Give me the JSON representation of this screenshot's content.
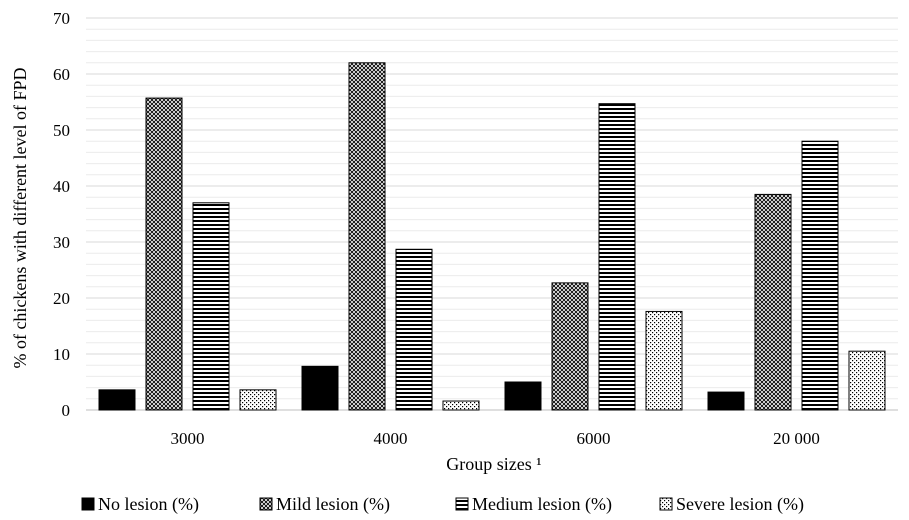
{
  "chart_data": {
    "type": "bar",
    "title": "",
    "xlabel": "Group sizes ¹",
    "ylabel": "% of chickens with different level of FPD",
    "ylim": [
      0,
      70
    ],
    "yticks": [
      0,
      10,
      20,
      30,
      40,
      50,
      60,
      70
    ],
    "grid": "horizontal",
    "legend_position": "bottom",
    "categories": [
      "3000",
      "4000",
      "6000",
      "20000"
    ],
    "category_labels": [
      "3000",
      "4000",
      "6000",
      "20 000"
    ],
    "series": [
      {
        "name": "No lesion (%)",
        "pattern": "solid",
        "values": [
          3.6,
          7.8,
          5.0,
          3.2
        ]
      },
      {
        "name": "Mild lesion (%)",
        "pattern": "crosshatch",
        "values": [
          55.7,
          62.0,
          22.7,
          38.5
        ]
      },
      {
        "name": "Medium lesion (%)",
        "pattern": "horizontal-stripes",
        "values": [
          37.0,
          28.7,
          54.7,
          48.0
        ]
      },
      {
        "name": "Severe lesion (%)",
        "pattern": "dots",
        "values": [
          3.6,
          1.6,
          17.6,
          10.5
        ]
      }
    ]
  }
}
